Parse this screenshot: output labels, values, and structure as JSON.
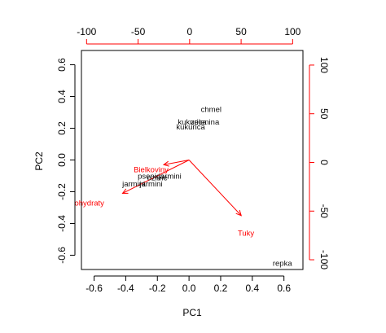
{
  "chart_data": {
    "type": "scatter",
    "subtype": "pca-biplot",
    "title": "",
    "xlabel": "PC1",
    "ylabel": "PC2",
    "xlim": [
      -0.68,
      0.72
    ],
    "ylim": [
      -0.69,
      0.69
    ],
    "top_xlim": [
      -105,
      110
    ],
    "right_ylim": [
      -110,
      115
    ],
    "x_ticks": [
      -0.6,
      -0.4,
      -0.2,
      0.0,
      0.2,
      0.4,
      0.6
    ],
    "y_ticks": [
      -0.6,
      -0.4,
      -0.2,
      0.0,
      0.2,
      0.4,
      0.6
    ],
    "top_ticks": [
      -100,
      -50,
      0,
      50,
      100
    ],
    "right_ticks": [
      -100,
      -50,
      0,
      50,
      100
    ],
    "x_tick_labels": [
      "-0.6",
      "-0.4",
      "-0.2",
      "0.0",
      "0.2",
      "0.4",
      "0.6"
    ],
    "y_tick_labels": [
      "-0.6",
      "-0.4",
      "-0.2",
      "0.0",
      "0.2",
      "0.4",
      "0.6"
    ],
    "top_tick_labels": [
      "-100",
      "-50",
      "0",
      "50",
      "100"
    ],
    "right_tick_labels": [
      "-100",
      "-50",
      "0",
      "50",
      "100"
    ],
    "grid": false,
    "observation_color": "#000000",
    "variable_color": "#ff0000",
    "observations": [
      {
        "label": "chmel",
        "x": 0.14,
        "y": 0.32
      },
      {
        "label": "kukurica",
        "x": 0.02,
        "y": 0.24
      },
      {
        "label": "zelenina",
        "x": 0.1,
        "y": 0.24
      },
      {
        "label": "kukurica",
        "x": 0.01,
        "y": 0.21
      },
      {
        "label": "repka",
        "x": 0.59,
        "y": -0.65
      },
      {
        "label": "jarmini",
        "x": -0.35,
        "y": -0.15
      },
      {
        "label": "jarmini",
        "x": -0.24,
        "y": -0.15
      },
      {
        "label": "jarmini",
        "x": -0.12,
        "y": -0.1
      },
      {
        "label": "psenica",
        "x": -0.24,
        "y": -0.1
      },
      {
        "label": "ozime",
        "x": -0.2,
        "y": -0.11
      }
    ],
    "variables": [
      {
        "label": "ohydraty",
        "x": -0.42,
        "y": -0.21,
        "text_x": -0.63,
        "text_y": -0.27
      },
      {
        "label": "Tuky",
        "x": 0.33,
        "y": -0.35,
        "text_x": 0.36,
        "text_y": -0.46
      },
      {
        "label": "Bielkoviny",
        "x": -0.16,
        "y": -0.03,
        "text_x": -0.24,
        "text_y": -0.06
      }
    ]
  }
}
